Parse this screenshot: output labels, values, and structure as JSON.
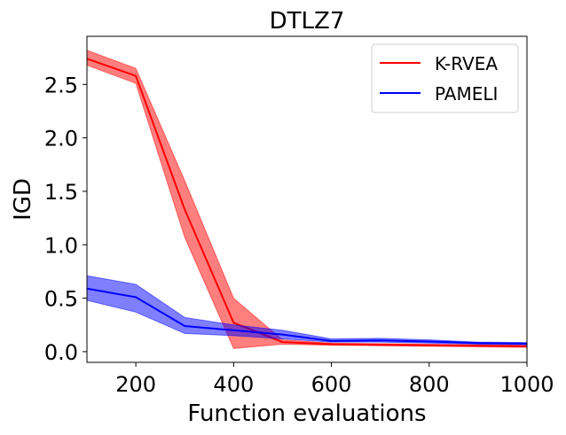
{
  "chart_data": {
    "type": "line",
    "title": "DTLZ7",
    "xlabel": "Function evaluations",
    "ylabel": "IGD",
    "xlim": [
      100,
      1000
    ],
    "ylim": [
      -0.1,
      2.95
    ],
    "xticks": [
      200,
      400,
      600,
      800,
      1000
    ],
    "xtick_labels": [
      "200",
      "400",
      "600",
      "800",
      "1000"
    ],
    "yticks": [
      0.0,
      0.5,
      1.0,
      1.5,
      2.0,
      2.5
    ],
    "ytick_labels": [
      "0.0",
      "0.5",
      "1.0",
      "1.5",
      "2.0",
      "2.5"
    ],
    "grid": false,
    "legend_position": "top-right",
    "series": [
      {
        "name": "K-RVEA",
        "color": "#ff0000",
        "x": [
          100,
          200,
          300,
          400,
          500,
          600,
          700,
          800,
          900,
          1000
        ],
        "mean": [
          2.74,
          2.58,
          1.33,
          0.27,
          0.09,
          0.07,
          0.065,
          0.06,
          0.055,
          0.05
        ],
        "lower": [
          2.68,
          2.51,
          1.07,
          0.03,
          0.07,
          0.06,
          0.055,
          0.05,
          0.045,
          0.04
        ],
        "upper": [
          2.82,
          2.65,
          1.6,
          0.5,
          0.11,
          0.08,
          0.075,
          0.07,
          0.065,
          0.06
        ]
      },
      {
        "name": "PAMELI",
        "color": "#0000ff",
        "x": [
          100,
          200,
          300,
          400,
          500,
          600,
          700,
          800,
          900,
          1000
        ],
        "mean": [
          0.59,
          0.51,
          0.24,
          0.2,
          0.16,
          0.1,
          0.105,
          0.095,
          0.08,
          0.075
        ],
        "lower": [
          0.48,
          0.37,
          0.17,
          0.15,
          0.12,
          0.09,
          0.09,
          0.08,
          0.07,
          0.065
        ],
        "upper": [
          0.71,
          0.63,
          0.32,
          0.25,
          0.2,
          0.12,
          0.125,
          0.11,
          0.09,
          0.085
        ]
      }
    ]
  }
}
